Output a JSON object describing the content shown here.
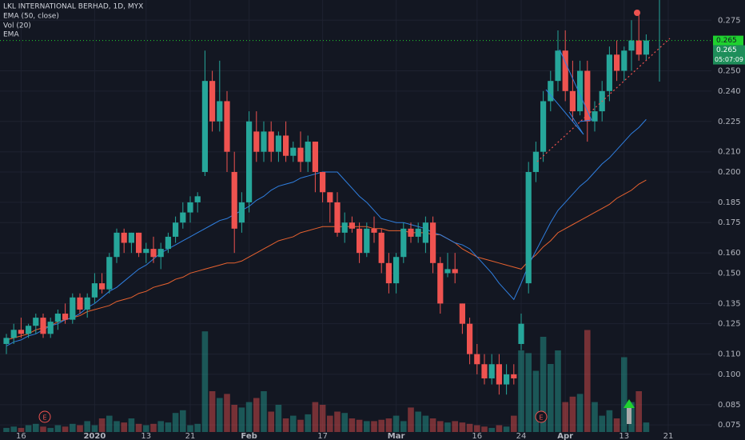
{
  "chart_data": {
    "type": "candlestick",
    "title": "LKL INTERNATIONAL BERHAD, 1D, MYX",
    "categories": [
      null,
      null,
      "16",
      null,
      null,
      null,
      null,
      null,
      null,
      null,
      null,
      null,
      "2020",
      null,
      null,
      null,
      null,
      null,
      null,
      "13",
      null,
      null,
      null,
      null,
      null,
      "21",
      null,
      null,
      null,
      null,
      null,
      null,
      null,
      "Feb",
      null,
      null,
      null,
      null,
      null,
      null,
      null,
      null,
      null,
      "17",
      null,
      null,
      null,
      null,
      null,
      null,
      null,
      null,
      null,
      "Mar",
      null,
      null,
      null,
      null,
      null,
      null,
      null,
      null,
      null,
      null,
      "16",
      null,
      null,
      null,
      null,
      null,
      "24",
      null,
      null,
      null,
      null,
      null,
      "Apr",
      null,
      null,
      null,
      null,
      null,
      null,
      null,
      "13",
      null,
      null,
      null,
      null,
      null,
      "21",
      null
    ],
    "open": [
      0.115,
      0.118,
      0.122,
      0.12,
      0.124,
      0.128,
      0.12,
      0.126,
      0.13,
      0.127,
      0.138,
      0.132,
      0.138,
      0.145,
      0.142,
      0.158,
      0.17,
      0.165,
      0.17,
      0.16,
      0.162,
      0.158,
      0.162,
      0.168,
      0.175,
      0.18,
      0.185,
      0.2,
      0.245,
      0.225,
      0.235,
      0.2,
      0.175,
      0.185,
      0.22,
      0.21,
      0.22,
      0.21,
      0.218,
      0.208,
      0.212,
      0.205,
      0.215,
      0.2,
      0.19,
      0.185,
      0.17,
      0.175,
      0.172,
      0.16,
      0.172,
      0.17,
      0.155,
      0.145,
      0.158,
      0.172,
      0.168,
      0.165,
      0.175,
      0.155,
      0.15,
      0.152,
      0.135,
      0.125,
      0.11,
      0.105,
      0.098,
      0.105,
      0.095,
      0.1,
      0.115,
      0.145,
      0.2,
      0.21,
      0.235,
      0.245,
      0.26,
      0.24,
      0.23,
      0.25,
      0.225,
      0.23,
      0.24,
      0.258,
      0.25,
      0.26,
      0.265,
      0.258,
      null,
      null,
      null,
      null
    ],
    "high": [
      0.12,
      0.125,
      0.128,
      0.125,
      0.13,
      0.13,
      0.128,
      0.132,
      0.135,
      0.14,
      0.14,
      0.14,
      0.15,
      0.15,
      0.16,
      0.172,
      0.172,
      0.17,
      0.17,
      0.165,
      0.168,
      0.165,
      0.17,
      0.178,
      0.185,
      0.188,
      0.19,
      0.26,
      0.25,
      0.255,
      0.24,
      0.21,
      0.19,
      0.23,
      0.23,
      0.225,
      0.225,
      0.22,
      0.225,
      0.215,
      0.22,
      0.218,
      0.215,
      0.2,
      0.19,
      0.19,
      0.18,
      0.178,
      0.175,
      0.175,
      0.178,
      0.172,
      0.16,
      0.16,
      0.175,
      0.175,
      0.175,
      0.178,
      0.178,
      0.158,
      0.16,
      0.16,
      0.135,
      0.128,
      0.115,
      0.11,
      0.11,
      0.11,
      0.105,
      0.105,
      0.13,
      0.205,
      0.215,
      0.24,
      0.25,
      0.27,
      0.27,
      0.255,
      0.255,
      0.255,
      0.235,
      0.245,
      0.262,
      0.265,
      0.262,
      0.275,
      0.28,
      0.268,
      null,
      null,
      null,
      null
    ],
    "low": [
      0.11,
      0.115,
      0.118,
      0.118,
      0.12,
      0.118,
      0.118,
      0.122,
      0.125,
      0.125,
      0.13,
      0.128,
      0.135,
      0.14,
      0.14,
      0.155,
      0.16,
      0.16,
      0.158,
      0.155,
      0.155,
      0.152,
      0.16,
      0.165,
      0.172,
      0.175,
      0.18,
      0.198,
      0.22,
      0.22,
      0.2,
      0.16,
      0.17,
      0.18,
      0.205,
      0.205,
      0.205,
      0.205,
      0.205,
      0.205,
      0.2,
      0.2,
      0.19,
      0.185,
      0.175,
      0.168,
      0.165,
      0.17,
      0.155,
      0.158,
      0.165,
      0.15,
      0.14,
      0.14,
      0.155,
      0.165,
      0.165,
      0.16,
      0.15,
      0.13,
      0.148,
      0.145,
      0.12,
      0.105,
      0.1,
      0.095,
      0.095,
      0.09,
      0.09,
      0.095,
      0.112,
      0.14,
      0.195,
      0.205,
      0.23,
      0.24,
      0.235,
      0.225,
      0.228,
      0.215,
      0.22,
      0.225,
      0.235,
      0.245,
      0.245,
      0.25,
      0.255,
      0.255,
      null,
      null,
      null,
      null
    ],
    "close": [
      0.118,
      0.122,
      0.12,
      0.124,
      0.128,
      0.12,
      0.126,
      0.13,
      0.127,
      0.138,
      0.132,
      0.138,
      0.145,
      0.142,
      0.158,
      0.17,
      0.165,
      0.17,
      0.16,
      0.162,
      0.158,
      0.162,
      0.168,
      0.175,
      0.18,
      0.185,
      0.188,
      0.245,
      0.225,
      0.235,
      0.21,
      0.172,
      0.185,
      0.225,
      0.21,
      0.22,
      0.21,
      0.218,
      0.208,
      0.212,
      0.205,
      0.215,
      0.2,
      0.19,
      0.185,
      0.17,
      0.175,
      0.172,
      0.16,
      0.172,
      0.17,
      0.155,
      0.145,
      0.158,
      0.172,
      0.168,
      0.172,
      0.175,
      0.155,
      0.135,
      0.152,
      0.15,
      0.125,
      0.11,
      0.105,
      0.098,
      0.105,
      0.095,
      0.1,
      0.098,
      0.125,
      0.2,
      0.21,
      0.235,
      0.245,
      0.26,
      0.24,
      0.23,
      0.25,
      0.225,
      0.23,
      0.24,
      0.258,
      0.25,
      0.26,
      0.265,
      0.258,
      0.265,
      null,
      null,
      null,
      null
    ],
    "up_color": "#26a69a",
    "down_color": "#ef5350",
    "volume": {
      "name": "Vol (20)",
      "values": [
        3,
        4,
        3,
        5,
        6,
        4,
        3,
        5,
        4,
        6,
        5,
        8,
        5,
        10,
        12,
        8,
        7,
        10,
        6,
        5,
        6,
        8,
        7,
        14,
        16,
        5,
        6,
        74,
        30,
        25,
        28,
        20,
        18,
        22,
        25,
        30,
        15,
        20,
        10,
        12,
        9,
        13,
        22,
        20,
        12,
        15,
        14,
        10,
        9,
        8,
        8,
        9,
        10,
        12,
        8,
        18,
        15,
        12,
        10,
        8,
        7,
        8,
        7,
        6,
        5,
        4,
        3,
        5,
        4,
        12,
        60,
        58,
        45,
        70,
        50,
        60,
        22,
        26,
        28,
        75,
        22,
        12,
        16,
        10,
        55,
        22,
        30,
        7,
        null,
        null,
        null,
        null
      ]
    },
    "y2lim": [
      0,
      100
    ],
    "series": [
      {
        "name": "EMA (50, close)",
        "color": "#e8622f",
        "values": [
          0.117,
          0.118,
          0.119,
          0.12,
          0.122,
          0.123,
          0.124,
          0.126,
          0.127,
          0.128,
          0.129,
          0.131,
          0.132,
          0.133,
          0.134,
          0.136,
          0.137,
          0.138,
          0.14,
          0.141,
          0.143,
          0.144,
          0.145,
          0.147,
          0.148,
          0.15,
          0.151,
          0.152,
          0.153,
          0.154,
          0.155,
          0.155,
          0.156,
          0.158,
          0.16,
          0.162,
          0.164,
          0.166,
          0.167,
          0.168,
          0.17,
          0.171,
          0.172,
          0.173,
          0.173,
          0.173,
          0.173,
          0.173,
          0.173,
          0.173,
          0.172,
          0.172,
          0.171,
          0.171,
          0.171,
          0.17,
          0.17,
          0.17,
          0.169,
          0.169,
          0.167,
          0.165,
          0.162,
          0.16,
          0.158,
          0.157,
          0.156,
          0.155,
          0.154,
          0.153,
          0.152,
          0.156,
          0.159,
          0.163,
          0.166,
          0.17,
          0.172,
          0.174,
          0.176,
          0.178,
          0.18,
          0.182,
          0.184,
          0.187,
          0.189,
          0.191,
          0.194,
          0.196,
          null,
          null,
          null,
          null
        ]
      },
      {
        "name": "EMA",
        "color": "#2f7fe0",
        "values": [
          0.114,
          0.116,
          0.117,
          0.119,
          0.12,
          0.122,
          0.124,
          0.125,
          0.127,
          0.128,
          0.13,
          0.133,
          0.135,
          0.138,
          0.141,
          0.143,
          0.146,
          0.149,
          0.152,
          0.154,
          0.157,
          0.16,
          0.162,
          0.164,
          0.166,
          0.168,
          0.17,
          0.172,
          0.174,
          0.176,
          0.177,
          0.179,
          0.181,
          0.183,
          0.186,
          0.188,
          0.191,
          0.193,
          0.194,
          0.195,
          0.197,
          0.198,
          0.199,
          0.2,
          0.2,
          0.2,
          0.196,
          0.192,
          0.188,
          0.185,
          0.181,
          0.177,
          0.176,
          0.175,
          0.175,
          0.174,
          0.173,
          0.172,
          0.17,
          0.169,
          0.167,
          0.165,
          0.164,
          0.162,
          0.158,
          0.154,
          0.15,
          0.145,
          0.141,
          0.137,
          0.145,
          0.154,
          0.161,
          0.168,
          0.175,
          0.181,
          0.185,
          0.189,
          0.193,
          0.196,
          0.2,
          0.204,
          0.207,
          0.211,
          0.215,
          0.219,
          0.222,
          0.226,
          null,
          null,
          null,
          null
        ]
      }
    ],
    "ylim": [
      0.0715,
      0.285
    ],
    "yticks": [
      0.075,
      0.085,
      {
        "value": 0.1,
        "label": "0.100"
      },
      {
        "value": 0.11,
        "label": "0.110"
      },
      0.125,
      0.135,
      {
        "value": 0.15,
        "label": "0.150"
      },
      {
        "value": 0.16,
        "label": "0.160"
      },
      0.175,
      0.185,
      {
        "value": 0.2,
        "label": "0.200"
      },
      {
        "value": 0.21,
        "label": "0.210"
      },
      0.225,
      {
        "value": 0.24,
        "label": "0.240"
      },
      {
        "value": 0.25,
        "label": "0.250"
      },
      0.275
    ],
    "grid": true,
    "last_price": 0.265,
    "last_price_color": "#1fd12f",
    "prev_price": 0.265,
    "countdown": "05:07:09",
    "earnings": [
      "E",
      "E"
    ]
  }
}
